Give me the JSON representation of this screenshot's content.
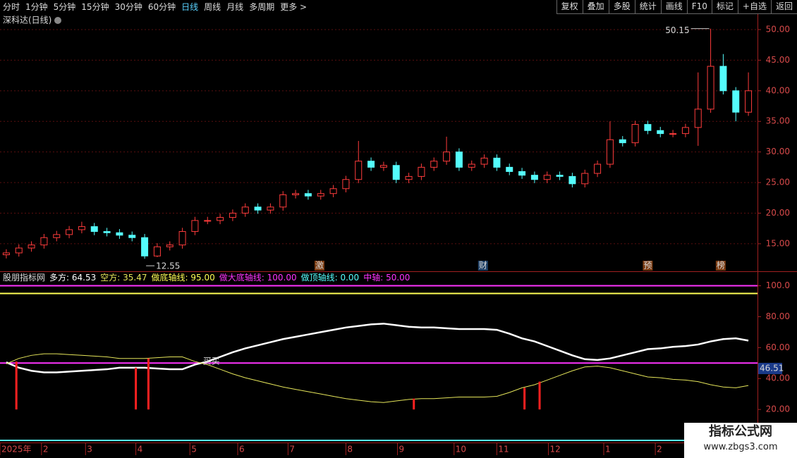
{
  "toolbar": {
    "periods": [
      "分时",
      "1分钟",
      "5分钟",
      "15分钟",
      "30分钟",
      "60分钟",
      "日线",
      "周线",
      "月线",
      "多周期",
      "更多 >"
    ],
    "active": 6,
    "actions": [
      "复权",
      "叠加",
      "多股",
      "统计",
      "画线",
      "F10",
      "标记",
      "+自选",
      "返回"
    ]
  },
  "chart_data": [
    {
      "type": "candlestick",
      "title": "深科达(日线)",
      "x": [
        0,
        1,
        2,
        3,
        4,
        5,
        6,
        7,
        8,
        9,
        10,
        11,
        12,
        13,
        14,
        15,
        16,
        17,
        18,
        19,
        20,
        21,
        22,
        23,
        24,
        25,
        26,
        27,
        28,
        29,
        30,
        31,
        32,
        33,
        34,
        35,
        36,
        37,
        38,
        39,
        40,
        41,
        42,
        43,
        44,
        45,
        46,
        47,
        48,
        49,
        50,
        51,
        52,
        53,
        54,
        55,
        56,
        57,
        58,
        59
      ],
      "open": [
        13.2,
        13.5,
        14.3,
        14.8,
        16.0,
        16.5,
        17.3,
        17.8,
        17.0,
        16.8,
        16.4,
        16.0,
        13.0,
        14.5,
        14.8,
        17.0,
        18.8,
        18.8,
        19.3,
        20.0,
        21.0,
        20.5,
        21.0,
        23.0,
        23.2,
        22.8,
        23.2,
        24.0,
        25.5,
        28.5,
        27.5,
        27.8,
        25.5,
        26.0,
        27.5,
        28.5,
        30.0,
        27.5,
        28.0,
        29.0,
        27.5,
        26.8,
        26.2,
        25.5,
        26.2,
        26.0,
        24.8,
        26.5,
        28.0,
        32.0,
        31.5,
        34.5,
        33.5,
        33.0,
        33.0,
        34.0,
        37.0,
        44.0,
        40.0,
        36.5
      ],
      "high": [
        14.1,
        14.9,
        15.4,
        16.6,
        17.1,
        17.9,
        18.6,
        18.4,
        17.6,
        17.4,
        17.0,
        16.6,
        15.1,
        15.4,
        17.6,
        19.4,
        19.4,
        19.9,
        20.6,
        21.6,
        21.6,
        21.6,
        23.6,
        23.8,
        23.8,
        23.8,
        24.6,
        26.1,
        31.8,
        29.1,
        28.4,
        28.4,
        26.6,
        28.1,
        29.1,
        32.5,
        30.6,
        28.6,
        29.6,
        29.6,
        28.1,
        27.4,
        26.8,
        26.8,
        26.8,
        26.6,
        27.1,
        28.6,
        35.0,
        32.6,
        35.1,
        35.1,
        34.1,
        33.6,
        34.6,
        43.0,
        50.15,
        46.0,
        40.6,
        43.0
      ],
      "low": [
        12.6,
        12.9,
        13.7,
        14.2,
        15.4,
        15.9,
        16.7,
        16.4,
        16.2,
        15.8,
        15.4,
        12.55,
        12.8,
        13.9,
        14.2,
        16.4,
        18.2,
        18.2,
        18.7,
        19.4,
        19.9,
        19.9,
        20.4,
        22.4,
        22.2,
        22.2,
        22.6,
        23.4,
        24.9,
        26.9,
        26.9,
        24.9,
        24.9,
        25.4,
        26.9,
        27.9,
        26.9,
        26.9,
        27.4,
        26.9,
        26.2,
        25.6,
        24.9,
        24.9,
        25.4,
        24.2,
        24.2,
        25.9,
        27.4,
        30.9,
        30.9,
        32.9,
        32.4,
        32.4,
        32.4,
        31.0,
        36.4,
        39.4,
        35.0,
        35.9
      ],
      "close": [
        13.5,
        14.3,
        14.8,
        16.0,
        16.5,
        17.3,
        17.8,
        17.0,
        16.8,
        16.4,
        16.0,
        13.0,
        14.5,
        14.8,
        17.0,
        18.8,
        18.8,
        19.3,
        20.0,
        21.0,
        20.5,
        21.0,
        23.0,
        23.2,
        22.8,
        23.2,
        24.0,
        25.5,
        28.5,
        27.5,
        27.8,
        25.5,
        26.0,
        27.5,
        28.5,
        30.0,
        27.5,
        28.0,
        29.0,
        27.5,
        26.8,
        26.2,
        25.5,
        26.2,
        26.0,
        24.8,
        26.5,
        28.0,
        32.0,
        31.5,
        34.5,
        33.5,
        33.0,
        33.0,
        34.0,
        37.0,
        44.0,
        40.0,
        36.5,
        40.0
      ],
      "up_color": "#ff3c3c",
      "down_color": "#54fcfc",
      "xlim": [
        -0.5,
        59.5
      ],
      "ylim": [
        10.5,
        52.3
      ],
      "yticks": [
        {
          "value": 15,
          "label": "15.00"
        },
        {
          "value": 20,
          "label": "20.00"
        },
        {
          "value": 25,
          "label": "25.00"
        },
        {
          "value": 30,
          "label": "30.00"
        },
        {
          "value": 35,
          "label": "35.00"
        },
        {
          "value": 40,
          "label": "40.00"
        },
        {
          "value": 45,
          "label": "45.00"
        },
        {
          "value": 50,
          "label": "50.00"
        }
      ],
      "xticks": [
        {
          "value": -0.5,
          "label": "2025年"
        },
        {
          "value": 2.8,
          "label": "2"
        },
        {
          "value": 6.3,
          "label": "3"
        },
        {
          "value": 10.3,
          "label": "4"
        },
        {
          "value": 14.6,
          "label": "5"
        },
        {
          "value": 18.4,
          "label": "6"
        },
        {
          "value": 22.4,
          "label": "7"
        },
        {
          "value": 27,
          "label": "8"
        },
        {
          "value": 31.1,
          "label": "9"
        },
        {
          "value": 35.6,
          "label": "10"
        },
        {
          "value": 39,
          "label": "11"
        },
        {
          "value": 43.1,
          "label": "12"
        },
        {
          "value": 47.5,
          "label": "1"
        },
        {
          "value": 51.6,
          "label": "2"
        }
      ],
      "grid": true,
      "event_markers": {
        "x": [
          24.9,
          37.9,
          51,
          56.8
        ],
        "labels": [
          "激",
          "财",
          "预",
          "榜"
        ]
      }
    },
    {
      "type": "line",
      "title": "股朋指标网",
      "series": [
        {
          "name": "多方",
          "color": "#ffffff",
          "values": [
            50.5,
            47,
            45,
            44,
            44,
            44.5,
            45,
            45.5,
            46,
            47,
            47,
            47,
            46.5,
            46,
            46,
            49,
            51,
            54,
            57,
            59.5,
            61.5,
            63.5,
            65.5,
            67,
            68.5,
            70,
            71.5,
            73,
            74,
            75,
            75.5,
            74.5,
            73.5,
            73,
            73,
            72.5,
            72,
            72,
            72,
            71.5,
            69,
            66,
            64,
            61,
            58,
            55,
            52.5,
            52,
            53,
            55,
            57,
            59,
            59.5,
            60.5,
            61,
            62,
            64,
            65.5,
            66,
            64.53
          ]
        },
        {
          "name": "空方",
          "color": "#e6e65a",
          "values": [
            49.5,
            53,
            55,
            56,
            56,
            55.5,
            55,
            54.5,
            54,
            53,
            53,
            53,
            53.5,
            54,
            54,
            51,
            49,
            46,
            43,
            40.5,
            38.5,
            36.5,
            34.5,
            33,
            31.5,
            30,
            28.5,
            27,
            26,
            25,
            24.5,
            25.5,
            26.5,
            27,
            27,
            27.5,
            28,
            28,
            28,
            28.5,
            31,
            34,
            36,
            39,
            42,
            45,
            47.5,
            48,
            47,
            45,
            43,
            41,
            40.5,
            39.5,
            39,
            38,
            36,
            34.5,
            34,
            35.47
          ]
        }
      ],
      "hlines": {
        "names": [
          "做底轴线",
          "做大底轴线",
          "做顶轴线",
          "中轴"
        ],
        "values": [
          95,
          100,
          0,
          50
        ],
        "value_labels": [
          "95.00",
          "100.00",
          "0.00",
          "50.00"
        ],
        "colors": [
          "#ffff55",
          "#ff33ff",
          "#55ffff",
          "#ff33ff"
        ]
      },
      "signal_bars": {
        "x": [
          0.8,
          10.3,
          11.3,
          32.4,
          41.2,
          42.4
        ],
        "values": [
          51,
          47,
          53,
          27,
          34,
          38
        ],
        "base": 20,
        "color": "#ff2020"
      },
      "annotations": [
        {
          "text": "买买",
          "x": 16.3,
          "y": 51
        }
      ],
      "cursor_value": 46.51,
      "ylim": [
        0,
        108
      ],
      "yticks": [
        {
          "value": 20,
          "label": "20.00"
        },
        {
          "value": 40,
          "label": "40.00"
        },
        {
          "value": 60,
          "label": "60.00"
        },
        {
          "value": 80,
          "label": "80.00"
        },
        {
          "value": 100,
          "label": "100.0"
        }
      ]
    }
  ],
  "watermark": {
    "title": "指标公式网",
    "url": "www.zbgs3.com"
  }
}
